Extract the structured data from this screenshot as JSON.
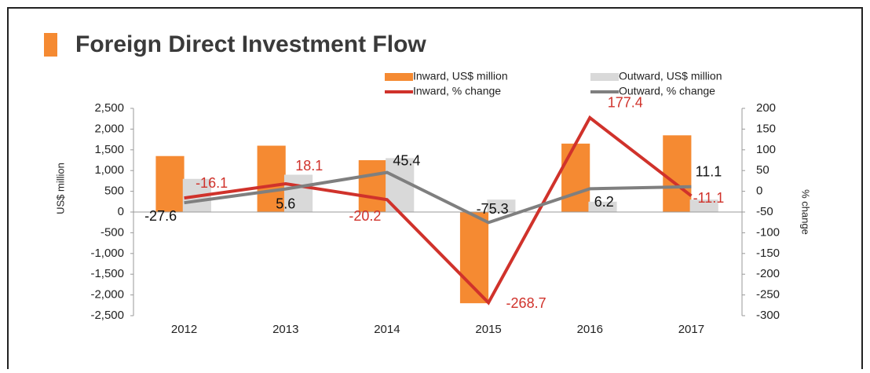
{
  "chart_data": {
    "type": "bar_line_combo",
    "title": "Foreign Direct Investment Flow",
    "y_label": "US$ million",
    "y2_label": "% change",
    "categories": [
      "2012",
      "2013",
      "2014",
      "2015",
      "2016",
      "2017"
    ],
    "series": [
      {
        "name": "Inward, US$ million",
        "type": "bar",
        "color": "#f58a32",
        "values": [
          1350,
          1600,
          1250,
          -2200,
          1650,
          1850
        ]
      },
      {
        "name": "Outward, US$ million",
        "type": "bar",
        "color": "#d9d9d9",
        "values": [
          800,
          900,
          1300,
          300,
          250,
          300
        ]
      },
      {
        "name": "Inward, % change",
        "type": "line",
        "axis": "y2",
        "color": "#d0322b",
        "values": [
          -16.1,
          18.1,
          -20.2,
          -268.7,
          177.4,
          -11.1
        ]
      },
      {
        "name": "Outward, % change",
        "type": "line",
        "axis": "y2",
        "color": "#7f7f7f",
        "values": [
          -27.6,
          5.6,
          45.4,
          -75.3,
          6.2,
          11.1
        ]
      }
    ],
    "ylim": [
      -2500,
      2500
    ],
    "yticks": [
      {
        "value": -2500,
        "label": "-2,500"
      },
      {
        "value": -2000,
        "label": "-2,000"
      },
      {
        "value": -1500,
        "label": "-1,500"
      },
      {
        "value": -1000,
        "label": "-1,000"
      },
      {
        "value": -500,
        "label": "-500"
      },
      0,
      500,
      {
        "value": 1000,
        "label": "1,000"
      },
      {
        "value": 1500,
        "label": "1,500"
      },
      {
        "value": 2000,
        "label": "2,000"
      },
      {
        "value": 2500,
        "label": "2,500"
      }
    ],
    "y2lim": [
      -300,
      200
    ],
    "y2ticks": [
      -300,
      -250,
      -200,
      -150,
      -100,
      -50,
      0,
      50,
      100,
      150,
      200
    ]
  }
}
